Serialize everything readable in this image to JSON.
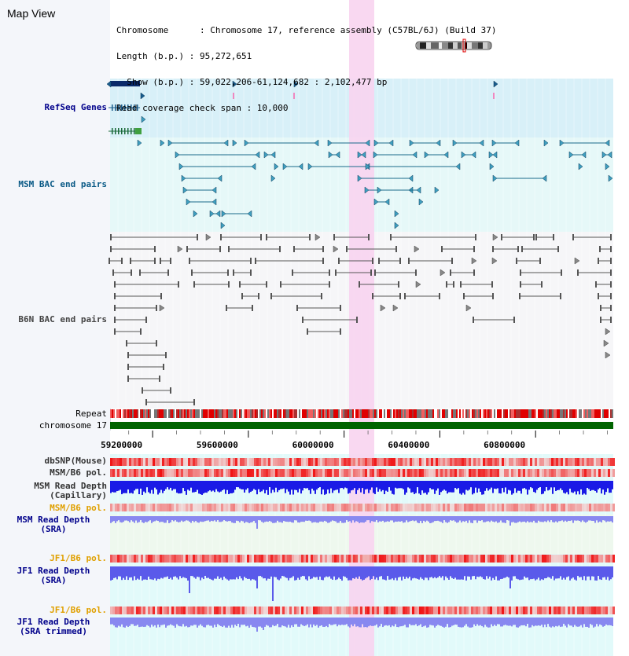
{
  "header": {
    "title": "Map View",
    "info_lines": [
      "Chromosome      : Chromosome 17, reference assembly (C57BL/6J) (Build 37)",
      "Length (b.p.) : 95,272,651",
      "  Show (b.p.) : 59,022,206-61,124,682 : 2,102,477 bp",
      "Read coverage check span : 10,000"
    ]
  },
  "tracks": {
    "refseq": "RefSeq Genes",
    "msm_bac": "MSM BAC end pairs",
    "b6n_bac": "B6N BAC end pairs",
    "repeat": "Repeat",
    "chromosome": "chromosome 17",
    "dbsnp": "dbSNP(Mouse)",
    "msm_b6_pol": "MSM/B6 pol.",
    "msm_depth_cap_1": "MSM Read Depth",
    "msm_depth_cap_2": "(Capillary)",
    "msm_b6_pol_sra": "MSM/B6 pol.",
    "msm_depth_sra_1": "MSM Read Depth",
    "msm_depth_sra_2": "(SRA)",
    "jf1_b6_pol": "JF1/B6 pol.",
    "jf1_depth_sra_1": "JF1 Read Depth",
    "jf1_depth_sra_2": "(SRA)",
    "jf1_b6_pol_trim": "JF1/B6 pol.",
    "jf1_depth_trim_1": "JF1 Read Depth",
    "jf1_depth_trim_2": "(SRA trimmed)"
  },
  "axis": {
    "start_bp": 59022206,
    "end_bp": 61124682,
    "ticks": [
      {
        "value": 59200000,
        "label": "59200000"
      },
      {
        "value": 59600000,
        "label": "59600000"
      },
      {
        "value": 60000000,
        "label": "60000000"
      },
      {
        "value": 60400000,
        "label": "60400000"
      },
      {
        "value": 60800000,
        "label": "60800000"
      }
    ]
  },
  "highlight": {
    "start_bp": 60000000,
    "end_bp": 60100000,
    "color": "#f8d4f0"
  },
  "colors": {
    "refseq_bg": "#d8f0f8",
    "msm_bg": "#e6f8f8",
    "b6n_bg": "#f6f6f8",
    "lower_bg": "#e2fafa",
    "sra_bg": "#eef8ee",
    "gene": "#1a5c8c",
    "msm_pair": "#1a6a8a",
    "b6n_pair": "#555555",
    "chromosome_bar": "#006400",
    "depth_cap": "#1a1ae6",
    "depth_sra": "#8888f0",
    "depth_jf1": "#5a5aea"
  }
}
